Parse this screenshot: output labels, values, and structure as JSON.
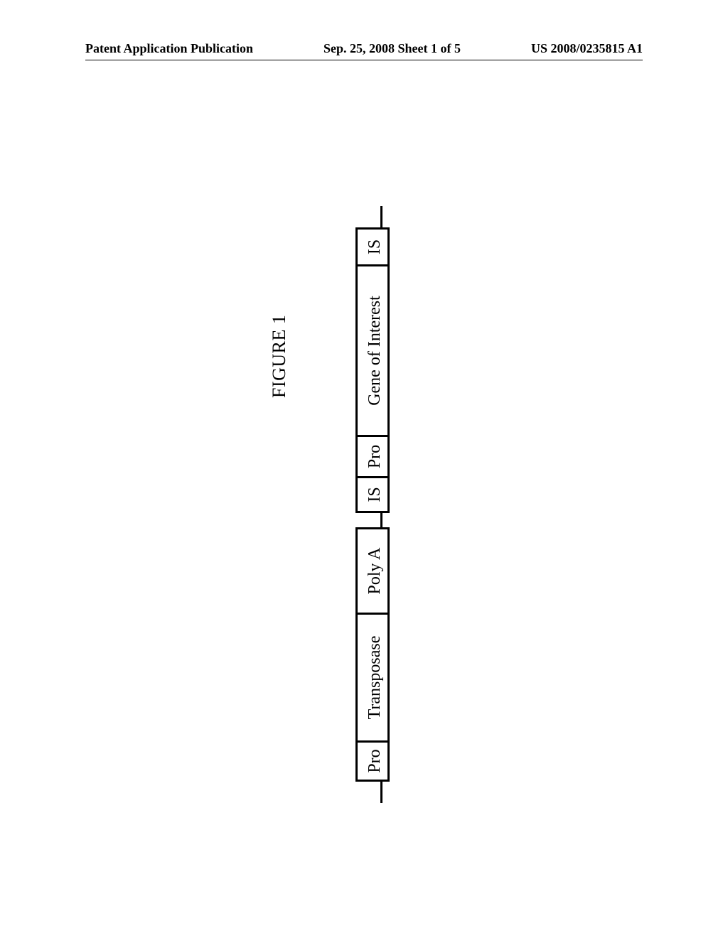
{
  "header": {
    "left": "Patent Application Publication",
    "center": "Sep. 25, 2008  Sheet 1 of 5",
    "right": "US 2008/0235815 A1"
  },
  "figure": {
    "title": "FIGURE 1",
    "title_fontsize": 26,
    "background_color": "#ffffff",
    "box_border_color": "#000000",
    "box_border_width": 3,
    "wire_color": "#000000",
    "rotation_deg": -90,
    "groups": [
      {
        "boxes": [
          {
            "label": "Pro",
            "width_class": "w-pro"
          },
          {
            "label": "Transposase",
            "width_class": "w-trans"
          },
          {
            "label": "Poly A",
            "width_class": "w-poly"
          }
        ]
      },
      {
        "boxes": [
          {
            "label": "IS",
            "width_class": "w-is"
          },
          {
            "label": "Pro",
            "width_class": "w-pro"
          },
          {
            "label": "Gene of Interest",
            "width_class": "w-goi"
          },
          {
            "label": "IS",
            "width_class": "w-is"
          }
        ]
      }
    ]
  }
}
